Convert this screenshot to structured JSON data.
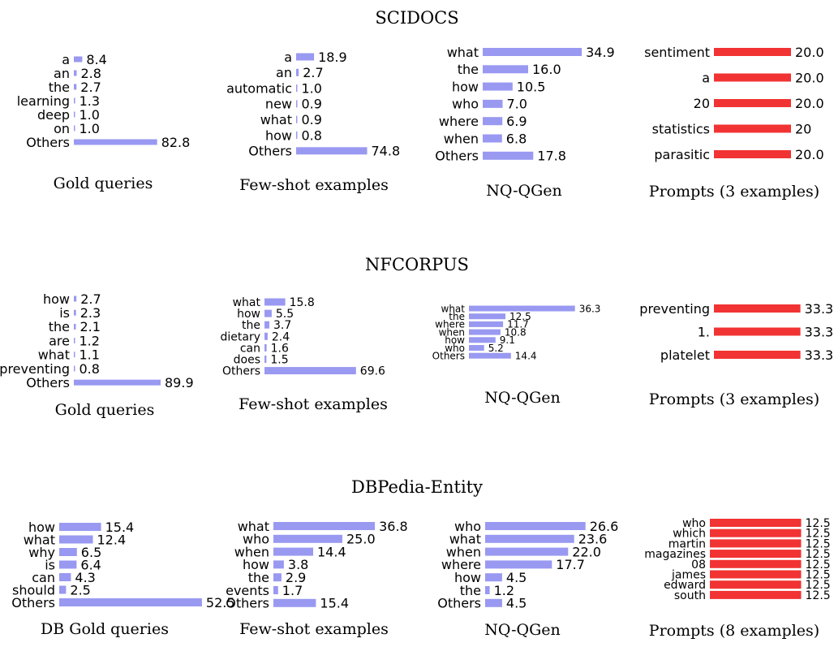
{
  "figure": {
    "sections": [
      {
        "title": "SCIDOCS"
      },
      {
        "title": "NFCORPUS"
      },
      {
        "title": "DBPedia-Entity"
      }
    ]
  },
  "colors": {
    "blue": "#9999f2",
    "red": "#f23333"
  },
  "chart_data": [
    {
      "type": "bar",
      "orientation": "horizontal",
      "section": "SCIDOCS",
      "title": "Gold queries",
      "color": "blue",
      "categories": [
        "a",
        "an",
        "the",
        "learning",
        "deep",
        "on",
        "Others"
      ],
      "values": [
        8.4,
        2.8,
        2.7,
        1.3,
        1.0,
        1.0,
        82.8
      ],
      "labels": [
        "8.4",
        "2.8",
        "2.7",
        "1.3",
        "1.0",
        "1.0",
        "82.8"
      ]
    },
    {
      "type": "bar",
      "orientation": "horizontal",
      "section": "SCIDOCS",
      "title": "Few-shot examples",
      "color": "blue",
      "categories": [
        "a",
        "an",
        "automatic",
        "new",
        "what",
        "how",
        "Others"
      ],
      "values": [
        18.9,
        2.7,
        1.0,
        0.9,
        0.9,
        0.8,
        74.8
      ],
      "labels": [
        "18.9",
        "2.7",
        "1.0",
        "0.9",
        "0.9",
        "0.8",
        "74.8"
      ]
    },
    {
      "type": "bar",
      "orientation": "horizontal",
      "section": "SCIDOCS",
      "title": "NQ-QGen",
      "color": "blue",
      "categories": [
        "what",
        "the",
        "how",
        "who",
        "where",
        "when",
        "Others"
      ],
      "values": [
        34.9,
        16.0,
        10.5,
        7.0,
        6.9,
        6.8,
        17.8
      ],
      "labels": [
        "34.9",
        "16.0",
        "10.5",
        "7.0",
        "6.9",
        "6.8",
        "17.8"
      ]
    },
    {
      "type": "bar",
      "orientation": "horizontal",
      "section": "SCIDOCS",
      "title": "Prompts (3 examples)",
      "color": "red",
      "categories": [
        "sentiment",
        "a",
        "20",
        "statistics",
        "parasitic"
      ],
      "values": [
        20.0,
        20.0,
        20.0,
        20,
        20.0
      ],
      "labels": [
        "20.0",
        "20.0",
        "20.0",
        "20",
        "20.0"
      ]
    },
    {
      "type": "bar",
      "orientation": "horizontal",
      "section": "NFCORPUS",
      "title": "Gold queries",
      "color": "blue",
      "categories": [
        "how",
        "is",
        "the",
        "are",
        "what",
        "preventing",
        "Others"
      ],
      "values": [
        2.7,
        2.3,
        2.1,
        1.2,
        1.1,
        0.8,
        89.9
      ],
      "labels": [
        "2.7",
        "2.3",
        "2.1",
        "1.2",
        "1.1",
        "0.8",
        "89.9"
      ]
    },
    {
      "type": "bar",
      "orientation": "horizontal",
      "section": "NFCORPUS",
      "title": "Few-shot examples",
      "color": "blue",
      "categories": [
        "what",
        "how",
        "the",
        "dietary",
        "can",
        "does",
        "Others"
      ],
      "values": [
        15.8,
        5.5,
        3.7,
        2.4,
        1.6,
        1.5,
        69.6
      ],
      "labels": [
        "15.8",
        "5.5",
        "3.7",
        "2.4",
        "1.6",
        "1.5",
        "69.6"
      ]
    },
    {
      "type": "bar",
      "orientation": "horizontal",
      "section": "NFCORPUS",
      "title": "NQ-QGen",
      "color": "blue",
      "categories": [
        "what",
        "the",
        "where",
        "when",
        "how",
        "who",
        "Others"
      ],
      "values": [
        36.3,
        12.5,
        11.7,
        10.8,
        9.1,
        5.2,
        14.4
      ],
      "labels": [
        "36.3",
        "12.5",
        "11.7",
        "10.8",
        "9.1",
        "5.2",
        "14.4"
      ]
    },
    {
      "type": "bar",
      "orientation": "horizontal",
      "section": "NFCORPUS",
      "title": "Prompts (3 examples)",
      "color": "red",
      "categories": [
        "preventing",
        "1.",
        "platelet"
      ],
      "values": [
        33.3,
        33.3,
        33.3
      ],
      "labels": [
        "33.3",
        "33.3",
        "33.3"
      ]
    },
    {
      "type": "bar",
      "orientation": "horizontal",
      "section": "DBPedia-Entity",
      "title": "DB Gold queries",
      "color": "blue",
      "categories": [
        "how",
        "what",
        "why",
        "is",
        "can",
        "should",
        "Others"
      ],
      "values": [
        15.4,
        12.4,
        6.5,
        6.4,
        4.3,
        2.5,
        52.5
      ],
      "labels": [
        "15.4",
        "12.4",
        "6.5",
        "6.4",
        "4.3",
        "2.5",
        "52.5"
      ]
    },
    {
      "type": "bar",
      "orientation": "horizontal",
      "section": "DBPedia-Entity",
      "title": "Few-shot examples",
      "color": "blue",
      "categories": [
        "what",
        "who",
        "when",
        "how",
        "the",
        "events",
        "Others"
      ],
      "values": [
        36.8,
        25.0,
        14.4,
        3.8,
        2.9,
        1.7,
        15.4
      ],
      "labels": [
        "36.8",
        "25.0",
        "14.4",
        "3.8",
        "2.9",
        "1.7",
        "15.4"
      ]
    },
    {
      "type": "bar",
      "orientation": "horizontal",
      "section": "DBPedia-Entity",
      "title": "NQ-QGen",
      "color": "blue",
      "categories": [
        "who",
        "what",
        "when",
        "where",
        "how",
        "the",
        "Others"
      ],
      "values": [
        26.6,
        23.6,
        22.0,
        17.7,
        4.5,
        1.2,
        4.5
      ],
      "labels": [
        "26.6",
        "23.6",
        "22.0",
        "17.7",
        "4.5",
        "1.2",
        "4.5"
      ]
    },
    {
      "type": "bar",
      "orientation": "horizontal",
      "section": "DBPedia-Entity",
      "title": "Prompts (8 examples)",
      "color": "red",
      "categories": [
        "who",
        "which",
        "martin",
        "magazines",
        "08",
        "james",
        "edward",
        "south"
      ],
      "values": [
        12.5,
        12.5,
        12.5,
        12.5,
        12.5,
        12.5,
        12.5,
        12.5
      ],
      "labels": [
        "12.5",
        "12.5",
        "12.5",
        "12.5",
        "12.5",
        "12.5",
        "12.5",
        "12.5"
      ]
    }
  ]
}
